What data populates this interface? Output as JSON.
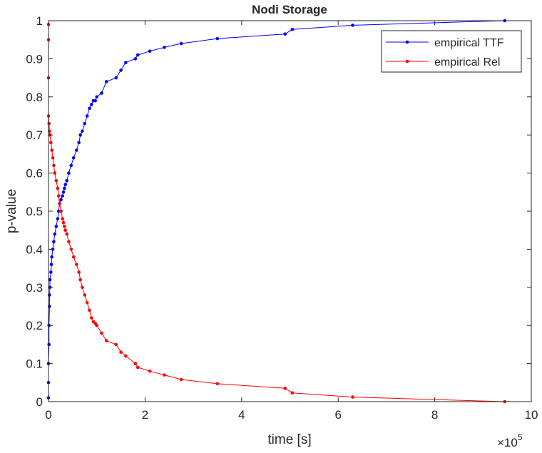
{
  "chart_data": {
    "type": "line",
    "title": "Nodi Storage",
    "xlabel": "time [s]",
    "ylabel": "p-value",
    "x_exponent_label": "×10",
    "x_exponent_power": "5",
    "xlim": [
      0,
      10
    ],
    "ylim": [
      0,
      1
    ],
    "x_ticks": [
      "0",
      "2",
      "4",
      "6",
      "8",
      "10"
    ],
    "y_ticks": [
      "0",
      "0.1",
      "0.2",
      "0.3",
      "0.4",
      "0.5",
      "0.6",
      "0.7",
      "0.8",
      "0.9",
      "1"
    ],
    "x_tick_values": [
      0,
      2,
      4,
      6,
      8,
      10
    ],
    "y_tick_values": [
      0,
      0.1,
      0.2,
      0.3,
      0.4,
      0.5,
      0.6,
      0.7,
      0.8,
      0.9,
      1
    ],
    "grid": false,
    "legend_position": "top-right",
    "series": [
      {
        "name": "empirical TTF",
        "color": "#0000ff",
        "x": [
          0.0,
          0.0,
          0.0,
          0.01,
          0.01,
          0.02,
          0.02,
          0.03,
          0.03,
          0.05,
          0.06,
          0.07,
          0.09,
          0.11,
          0.13,
          0.16,
          0.19,
          0.21,
          0.23,
          0.26,
          0.29,
          0.31,
          0.33,
          0.35,
          0.38,
          0.42,
          0.47,
          0.52,
          0.58,
          0.63,
          0.66,
          0.7,
          0.75,
          0.8,
          0.85,
          0.89,
          0.93,
          0.97,
          1.0,
          1.1,
          1.2,
          1.4,
          1.5,
          1.6,
          1.8,
          1.85,
          2.1,
          2.4,
          2.75,
          3.5,
          4.9,
          5.05,
          6.3,
          9.45
        ],
        "y": [
          0.01,
          0.05,
          0.1,
          0.15,
          0.2,
          0.25,
          0.28,
          0.3,
          0.32,
          0.34,
          0.36,
          0.38,
          0.4,
          0.42,
          0.44,
          0.46,
          0.48,
          0.5,
          0.52,
          0.53,
          0.54,
          0.55,
          0.56,
          0.57,
          0.58,
          0.6,
          0.62,
          0.64,
          0.66,
          0.68,
          0.7,
          0.71,
          0.73,
          0.75,
          0.77,
          0.78,
          0.79,
          0.79,
          0.8,
          0.81,
          0.84,
          0.85,
          0.87,
          0.89,
          0.9,
          0.91,
          0.92,
          0.93,
          0.94,
          0.953,
          0.965,
          0.977,
          0.988,
          1.0
        ]
      },
      {
        "name": "empirical Rel",
        "color": "#ff0000",
        "x": [
          0.0,
          0.0,
          0.0,
          0.0,
          0.01,
          0.02,
          0.03,
          0.05,
          0.07,
          0.09,
          0.11,
          0.13,
          0.16,
          0.19,
          0.21,
          0.23,
          0.26,
          0.29,
          0.31,
          0.33,
          0.35,
          0.38,
          0.42,
          0.47,
          0.52,
          0.58,
          0.63,
          0.66,
          0.7,
          0.75,
          0.8,
          0.85,
          0.89,
          0.93,
          0.97,
          1.0,
          1.1,
          1.2,
          1.4,
          1.5,
          1.6,
          1.8,
          1.85,
          2.1,
          2.4,
          2.75,
          3.5,
          4.9,
          5.05,
          6.3,
          9.45
        ],
        "y": [
          0.99,
          0.95,
          0.85,
          0.75,
          0.73,
          0.71,
          0.7,
          0.68,
          0.66,
          0.64,
          0.62,
          0.6,
          0.58,
          0.56,
          0.54,
          0.52,
          0.5,
          0.48,
          0.47,
          0.46,
          0.45,
          0.44,
          0.42,
          0.4,
          0.38,
          0.36,
          0.34,
          0.32,
          0.3,
          0.28,
          0.26,
          0.24,
          0.22,
          0.21,
          0.205,
          0.2,
          0.18,
          0.16,
          0.15,
          0.13,
          0.12,
          0.1,
          0.09,
          0.08,
          0.07,
          0.058,
          0.047,
          0.035,
          0.023,
          0.012,
          0.0
        ]
      }
    ]
  }
}
